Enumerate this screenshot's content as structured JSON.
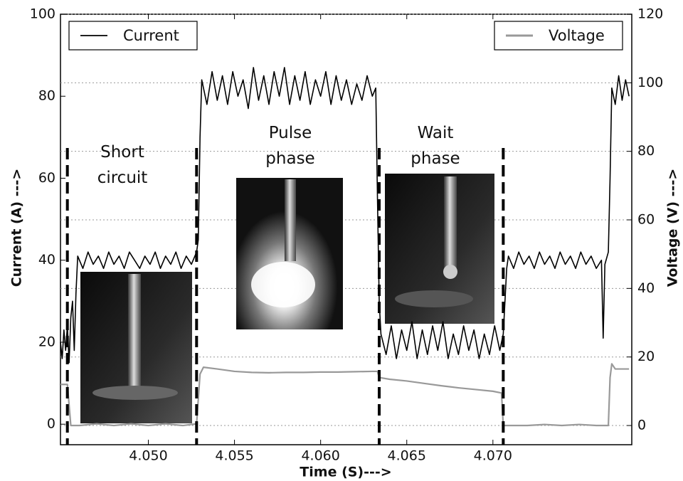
{
  "chart_data": {
    "type": "line",
    "x_label": "Time (S)--->",
    "y_label": "Current (A) --->",
    "y2_label": "Voltage (V) --->",
    "xlim": [
      4.0449,
      4.07806
    ],
    "xticks": [
      {
        "value": 4.05,
        "label": "4.050"
      },
      {
        "value": 4.055,
        "label": "4.055"
      },
      {
        "value": 4.06,
        "label": "4.060"
      },
      {
        "value": 4.065,
        "label": "4.065"
      },
      {
        "value": 4.07,
        "label": "4.070"
      }
    ],
    "ylim": [
      -5,
      100
    ],
    "yticks": [
      0,
      20,
      40,
      60,
      80,
      100
    ],
    "y2lim": [
      -5.6,
      120
    ],
    "y2ticks": [
      0,
      20,
      40,
      60,
      80,
      100,
      120
    ],
    "grid": "y2",
    "series": [
      {
        "name": "Current",
        "color": "#000000",
        "legend": "upper left",
        "x": [
          4.0449,
          4.045,
          4.0451,
          4.0452,
          4.0453,
          4.0454,
          4.0455,
          4.0456,
          4.0457,
          4.0458,
          4.0459,
          4.0462,
          4.0465,
          4.0468,
          4.0471,
          4.0474,
          4.0477,
          4.048,
          4.0483,
          4.0486,
          4.0489,
          4.0492,
          4.0495,
          4.0498,
          4.0501,
          4.0504,
          4.0507,
          4.051,
          4.0513,
          4.0516,
          4.0519,
          4.0522,
          4.0525,
          4.0528,
          4.0529,
          4.053,
          4.0531,
          4.0534,
          4.0537,
          4.054,
          4.0543,
          4.0546,
          4.0549,
          4.0552,
          4.0555,
          4.0558,
          4.0561,
          4.0564,
          4.0567,
          4.057,
          4.0573,
          4.0576,
          4.0579,
          4.0582,
          4.0585,
          4.0588,
          4.0591,
          4.0594,
          4.0597,
          4.06,
          4.0603,
          4.0606,
          4.0609,
          4.0612,
          4.0615,
          4.0618,
          4.0621,
          4.0624,
          4.0627,
          4.063,
          4.0632,
          4.0633,
          4.0634,
          4.0635,
          4.0638,
          4.0641,
          4.0644,
          4.0647,
          4.065,
          4.0653,
          4.0656,
          4.0659,
          4.0662,
          4.0665,
          4.0668,
          4.0671,
          4.0674,
          4.0677,
          4.068,
          4.0683,
          4.0686,
          4.0689,
          4.0692,
          4.0695,
          4.0698,
          4.0701,
          4.0704,
          4.0706,
          4.0707,
          4.0708,
          4.0709,
          4.0712,
          4.0715,
          4.0718,
          4.0721,
          4.0724,
          4.0727,
          4.073,
          4.0733,
          4.0736,
          4.0739,
          4.0742,
          4.0745,
          4.0748,
          4.0751,
          4.0754,
          4.0757,
          4.076,
          4.0763,
          4.0764,
          4.0765,
          4.0767,
          4.0768,
          4.0769,
          4.0771,
          4.0773,
          4.0775,
          4.0777,
          4.0779
        ],
        "values": [
          20,
          16,
          23,
          18,
          24,
          15,
          26,
          30,
          18,
          32,
          41,
          38,
          42,
          39,
          41,
          38,
          42,
          39,
          41,
          38,
          42,
          40,
          38,
          41,
          39,
          42,
          38,
          41,
          39,
          42,
          38,
          41,
          39,
          42,
          45,
          70,
          84,
          78,
          86,
          79,
          85,
          78,
          86,
          80,
          84,
          77,
          87,
          79,
          85,
          78,
          86,
          80,
          87,
          78,
          85,
          79,
          86,
          78,
          84,
          80,
          86,
          78,
          85,
          79,
          84,
          78,
          83,
          79,
          85,
          80,
          82,
          55,
          30,
          22,
          17,
          24,
          16,
          23,
          18,
          25,
          16,
          23,
          17,
          24,
          18,
          25,
          16,
          22,
          17,
          24,
          18,
          23,
          16,
          22,
          17,
          24,
          18,
          22,
          30,
          38,
          41,
          38,
          42,
          39,
          41,
          38,
          42,
          39,
          41,
          38,
          42,
          39,
          41,
          38,
          42,
          39,
          41,
          38,
          40,
          21,
          39,
          42,
          60,
          82,
          78,
          85,
          79,
          84,
          80
        ]
      },
      {
        "name": "Voltage",
        "color": "#999999",
        "axis": "y2",
        "legend": "upper right",
        "x": [
          4.0449,
          4.0453,
          4.0454,
          4.0455,
          4.046,
          4.047,
          4.048,
          4.049,
          4.05,
          4.051,
          4.052,
          4.0528,
          4.053,
          4.0532,
          4.054,
          4.055,
          4.056,
          4.057,
          4.058,
          4.059,
          4.06,
          4.061,
          4.062,
          4.063,
          4.0633,
          4.0634,
          4.064,
          4.065,
          4.066,
          4.067,
          4.068,
          4.069,
          4.07,
          4.0705,
          4.0706,
          4.072,
          4.073,
          4.074,
          4.075,
          4.076,
          4.0767,
          4.0768,
          4.0769,
          4.0771,
          4.0779
        ],
        "values": [
          12,
          12,
          6,
          0,
          0,
          0.5,
          0,
          0.5,
          0,
          0.5,
          0,
          0.5,
          15,
          17,
          16.5,
          15.8,
          15.5,
          15.4,
          15.5,
          15.5,
          15.6,
          15.6,
          15.7,
          15.8,
          15.8,
          14,
          13.5,
          13,
          12.3,
          11.6,
          11,
          10.5,
          10,
          9.5,
          0,
          0,
          0.3,
          0,
          0.3,
          0,
          0,
          14,
          18,
          16.5,
          16.5
        ]
      }
    ],
    "phase_boundaries": [
      4.0453,
      4.0528,
      4.0634,
      4.0706
    ],
    "annotations": [
      "Short circuit",
      "Pulse phase",
      "Wait phase"
    ]
  }
}
